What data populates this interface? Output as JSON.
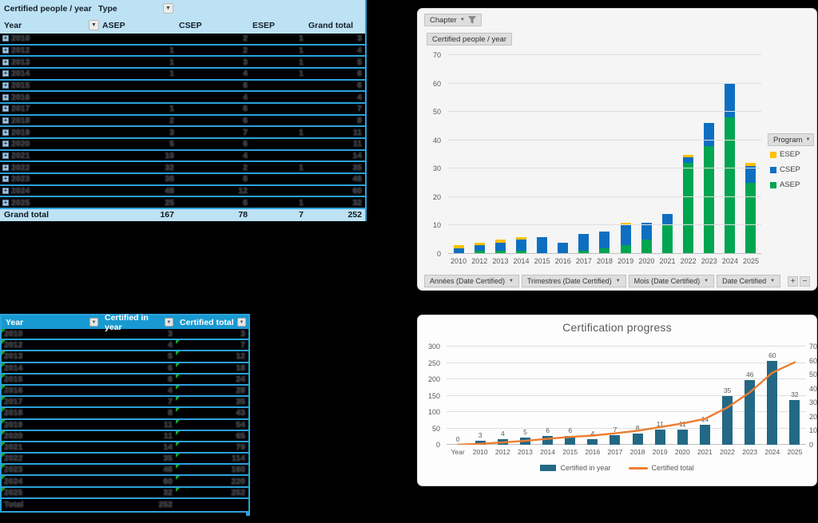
{
  "colors": {
    "page_bg": "#000000",
    "pivot_header_blue": "#BDE2F4",
    "table_header_blue": "#1899D1",
    "table_line_blue": "#2BA2DC",
    "flag_green": "#18A428",
    "asep_green": "#00A550",
    "csep_blue": "#0E6FC1",
    "esep_yellow": "#FFC000",
    "bar_teal": "#236885",
    "line_orange": "#ED7D31"
  },
  "pivot_table": {
    "title": "Certified people / year",
    "filter_field": "Type",
    "row_field": "Year",
    "columns": [
      "ASEP",
      "CSEP",
      "ESEP",
      "Grand total"
    ],
    "rows": [
      {
        "year": "2010",
        "asep": "",
        "csep": "2",
        "esep": "1",
        "total": "3"
      },
      {
        "year": "2012",
        "asep": "1",
        "csep": "2",
        "esep": "1",
        "total": "4"
      },
      {
        "year": "2013",
        "asep": "1",
        "csep": "3",
        "esep": "1",
        "total": "5"
      },
      {
        "year": "2014",
        "asep": "1",
        "csep": "4",
        "esep": "1",
        "total": "6"
      },
      {
        "year": "2015",
        "asep": "",
        "csep": "6",
        "esep": "",
        "total": "6"
      },
      {
        "year": "2016",
        "asep": "",
        "csep": "4",
        "esep": "",
        "total": "4"
      },
      {
        "year": "2017",
        "asep": "1",
        "csep": "6",
        "esep": "",
        "total": "7"
      },
      {
        "year": "2018",
        "asep": "2",
        "csep": "6",
        "esep": "",
        "total": "8"
      },
      {
        "year": "2019",
        "asep": "3",
        "csep": "7",
        "esep": "1",
        "total": "11"
      },
      {
        "year": "2020",
        "asep": "5",
        "csep": "6",
        "esep": "",
        "total": "11"
      },
      {
        "year": "2021",
        "asep": "10",
        "csep": "4",
        "esep": "",
        "total": "14"
      },
      {
        "year": "2022",
        "asep": "32",
        "csep": "2",
        "esep": "1",
        "total": "35"
      },
      {
        "year": "2023",
        "asep": "38",
        "csep": "8",
        "esep": "",
        "total": "46"
      },
      {
        "year": "2024",
        "asep": "48",
        "csep": "12",
        "esep": "",
        "total": "60"
      },
      {
        "year": "2025",
        "asep": "25",
        "csep": "6",
        "esep": "1",
        "total": "32"
      }
    ],
    "grand_total": {
      "label": "Grand total",
      "asep": "167",
      "csep": "78",
      "esep": "7",
      "total": "252"
    }
  },
  "summary_table": {
    "headers": [
      "Year",
      "Certified in year",
      "Certified total"
    ],
    "rows": [
      {
        "year": "2010",
        "in_year": "3",
        "total": "3",
        "flag": false
      },
      {
        "year": "2012",
        "in_year": "4",
        "total": "7",
        "flag": true
      },
      {
        "year": "2013",
        "in_year": "5",
        "total": "12",
        "flag": true
      },
      {
        "year": "2014",
        "in_year": "6",
        "total": "18",
        "flag": true
      },
      {
        "year": "2015",
        "in_year": "6",
        "total": "24",
        "flag": true
      },
      {
        "year": "2016",
        "in_year": "4",
        "total": "28",
        "flag": true
      },
      {
        "year": "2017",
        "in_year": "7",
        "total": "35",
        "flag": true
      },
      {
        "year": "2018",
        "in_year": "8",
        "total": "43",
        "flag": true
      },
      {
        "year": "2019",
        "in_year": "11",
        "total": "54",
        "flag": true
      },
      {
        "year": "2020",
        "in_year": "11",
        "total": "65",
        "flag": true
      },
      {
        "year": "2021",
        "in_year": "14",
        "total": "79",
        "flag": true
      },
      {
        "year": "2022",
        "in_year": "35",
        "total": "114",
        "flag": true
      },
      {
        "year": "2023",
        "in_year": "46",
        "total": "160",
        "flag": true
      },
      {
        "year": "2024",
        "in_year": "60",
        "total": "220",
        "flag": true
      },
      {
        "year": "2025",
        "in_year": "32",
        "total": "252",
        "flag": true
      }
    ],
    "total_row": {
      "label": "Total",
      "in_year": "252",
      "total": ""
    }
  },
  "pivot_chart": {
    "filter_button": "Chapter",
    "value_button": "Certified people / year",
    "legend_button": "Program",
    "axis_buttons": [
      "Années (Date Certified)",
      "Trimestres (Date Certified)",
      "Mois (Date Certified)",
      "Date Certified"
    ],
    "zoom_plus": "+",
    "zoom_minus": "−"
  },
  "progress_chart": {
    "title": "Certification progress"
  },
  "chart_data": [
    {
      "id": "certified-people-per-year",
      "type": "bar",
      "stacked": true,
      "title": "Certified people / year",
      "categories": [
        "2010",
        "2012",
        "2013",
        "2014",
        "2015",
        "2016",
        "2017",
        "2018",
        "2019",
        "2020",
        "2021",
        "2022",
        "2023",
        "2024",
        "2025"
      ],
      "series": [
        {
          "name": "ASEP",
          "color": "#00A550",
          "values": [
            0,
            1,
            1,
            1,
            0,
            0,
            1,
            2,
            3,
            5,
            10,
            32,
            38,
            48,
            25
          ]
        },
        {
          "name": "CSEP",
          "color": "#0E6FC1",
          "values": [
            2,
            2,
            3,
            4,
            6,
            4,
            6,
            6,
            7,
            6,
            4,
            2,
            8,
            12,
            6
          ]
        },
        {
          "name": "ESEP",
          "color": "#FFC000",
          "values": [
            1,
            1,
            1,
            1,
            0,
            0,
            0,
            0,
            1,
            0,
            0,
            1,
            0,
            0,
            1
          ]
        }
      ],
      "ylim": [
        0,
        70
      ],
      "ytick_step": 10,
      "grid": true,
      "legend_position": "right"
    },
    {
      "id": "certification-progress",
      "type": "bar",
      "combo": true,
      "title": "Certification progress",
      "categories": [
        "Year",
        "2010",
        "2012",
        "2013",
        "2014",
        "2015",
        "2016",
        "2017",
        "2018",
        "2019",
        "2020",
        "2021",
        "2022",
        "2023",
        "2024",
        "2025"
      ],
      "series": [
        {
          "name": "Certified in year",
          "type": "bar",
          "axis": "right",
          "color": "#236885",
          "values": [
            0,
            3,
            4,
            5,
            6,
            6,
            4,
            7,
            8,
            11,
            11,
            14,
            35,
            46,
            60,
            32
          ],
          "labels": true
        },
        {
          "name": "Certified total",
          "type": "line",
          "axis": "left",
          "color": "#ED7D31",
          "values": [
            0,
            3,
            7,
            12,
            18,
            24,
            28,
            35,
            43,
            54,
            65,
            79,
            114,
            160,
            220,
            252
          ]
        }
      ],
      "left_ylim": [
        0,
        300
      ],
      "left_step": 50,
      "right_ylim": [
        0,
        70
      ],
      "right_step": 10,
      "grid": true,
      "legend_position": "bottom"
    }
  ]
}
